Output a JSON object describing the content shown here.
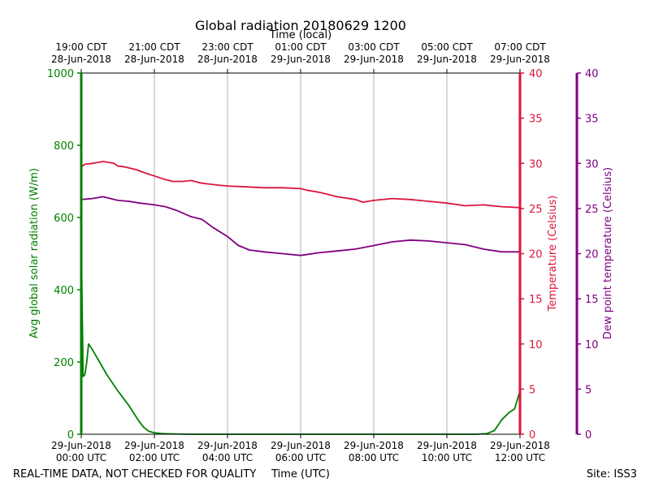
{
  "chart_data": {
    "type": "line",
    "title": "Global radiation 20180629 1200",
    "top_xlabel": "Time (local)",
    "xlabel": "Time (UTC)",
    "ylabel_left": "Avg global solar radiation (W/m)",
    "ylabel_right_1": "Temperature (Celsius)",
    "ylabel_right_2": "Dew point temperature (Celsius)",
    "footer_left": "REAL-TIME DATA, NOT CHECKED FOR QUALITY",
    "footer_right": "Site: ISS3",
    "xlim_hours": [
      0,
      12
    ],
    "ylim_radiation": [
      0,
      1000
    ],
    "ylim_temperature": [
      0,
      40
    ],
    "ylim_dewpoint": [
      0,
      40
    ],
    "grid": "vertical",
    "colors": {
      "radiation": "#008000",
      "temperature": "#dc143c",
      "dewpoint": "#800080",
      "grid": "#b0b0b0",
      "axis": "#000000"
    },
    "bottom_ticks": [
      {
        "hour": 0,
        "date": "29-Jun-2018",
        "time": "00:00 UTC"
      },
      {
        "hour": 2,
        "date": "29-Jun-2018",
        "time": "02:00 UTC"
      },
      {
        "hour": 4,
        "date": "29-Jun-2018",
        "time": "04:00 UTC"
      },
      {
        "hour": 6,
        "date": "29-Jun-2018",
        "time": "06:00 UTC"
      },
      {
        "hour": 8,
        "date": "29-Jun-2018",
        "time": "08:00 UTC"
      },
      {
        "hour": 10,
        "date": "29-Jun-2018",
        "time": "10:00 UTC"
      },
      {
        "hour": 12,
        "date": "29-Jun-2018",
        "time": "12:00 UTC"
      }
    ],
    "top_ticks": [
      {
        "hour": 0,
        "time": "19:00 CDT",
        "date": "28-Jun-2018"
      },
      {
        "hour": 2,
        "time": "21:00 CDT",
        "date": "28-Jun-2018"
      },
      {
        "hour": 4,
        "time": "23:00 CDT",
        "date": "28-Jun-2018"
      },
      {
        "hour": 6,
        "time": "01:00 CDT",
        "date": "29-Jun-2018"
      },
      {
        "hour": 8,
        "time": "03:00 CDT",
        "date": "29-Jun-2018"
      },
      {
        "hour": 10,
        "time": "05:00 CDT",
        "date": "29-Jun-2018"
      },
      {
        "hour": 12,
        "time": "07:00 CDT",
        "date": "29-Jun-2018"
      }
    ],
    "yticks_radiation": [
      0,
      200,
      400,
      600,
      800,
      1000
    ],
    "yticks_temperature": [
      0,
      5,
      10,
      15,
      20,
      25,
      30,
      35,
      40
    ],
    "yticks_dewpoint": [
      0,
      5,
      10,
      15,
      20,
      25,
      30,
      35,
      40
    ],
    "series": [
      {
        "name": "Avg global solar radiation",
        "axis": "radiation",
        "x": [
          0,
          0.05,
          0.1,
          0.15,
          0.2,
          0.3,
          0.5,
          0.7,
          1.0,
          1.3,
          1.55,
          1.7,
          1.85,
          2.0,
          2.2,
          2.5,
          3.0,
          4.0,
          6.0,
          8.0,
          10.0,
          10.8,
          11.1,
          11.3,
          11.5,
          11.7,
          11.85,
          12.0
        ],
        "y": [
          540,
          160,
          165,
          200,
          250,
          235,
          200,
          165,
          120,
          80,
          40,
          20,
          8,
          4,
          2,
          1,
          0,
          0,
          0,
          0,
          0,
          0,
          2,
          10,
          40,
          60,
          70,
          120
        ]
      },
      {
        "name": "Temperature",
        "axis": "temperature",
        "x": [
          0,
          0.1,
          0.3,
          0.6,
          0.9,
          1.0,
          1.2,
          1.5,
          1.7,
          2.0,
          2.3,
          2.5,
          2.8,
          3.0,
          3.3,
          3.7,
          4.0,
          4.5,
          5.0,
          5.5,
          6.0,
          6.2,
          6.5,
          7.0,
          7.5,
          7.7,
          8.0,
          8.5,
          9.0,
          9.5,
          10.0,
          10.5,
          11.0,
          11.5,
          12.0
        ],
        "y": [
          29.6,
          29.9,
          30.0,
          30.2,
          30.0,
          29.7,
          29.6,
          29.3,
          29.0,
          28.6,
          28.2,
          28.0,
          28.0,
          28.1,
          27.8,
          27.6,
          27.5,
          27.4,
          27.3,
          27.3,
          27.2,
          27.0,
          26.8,
          26.3,
          26.0,
          25.7,
          25.9,
          26.1,
          26.0,
          25.8,
          25.6,
          25.3,
          25.4,
          25.2,
          25.1
        ]
      },
      {
        "name": "Dew point temperature",
        "axis": "dewpoint",
        "x": [
          0,
          0.3,
          0.6,
          0.8,
          1.0,
          1.3,
          1.6,
          2.0,
          2.3,
          2.6,
          3.0,
          3.3,
          3.6,
          4.0,
          4.3,
          4.6,
          5.0,
          5.5,
          6.0,
          6.5,
          7.0,
          7.5,
          8.0,
          8.5,
          9.0,
          9.5,
          10.0,
          10.5,
          11.0,
          11.5,
          12.0
        ],
        "y": [
          26.0,
          26.1,
          26.3,
          26.1,
          25.9,
          25.8,
          25.6,
          25.4,
          25.2,
          24.8,
          24.1,
          23.8,
          22.9,
          21.9,
          20.9,
          20.4,
          20.2,
          20.0,
          19.8,
          20.1,
          20.3,
          20.5,
          20.9,
          21.3,
          21.5,
          21.4,
          21.2,
          21.0,
          20.5,
          20.2,
          20.2
        ]
      }
    ]
  }
}
